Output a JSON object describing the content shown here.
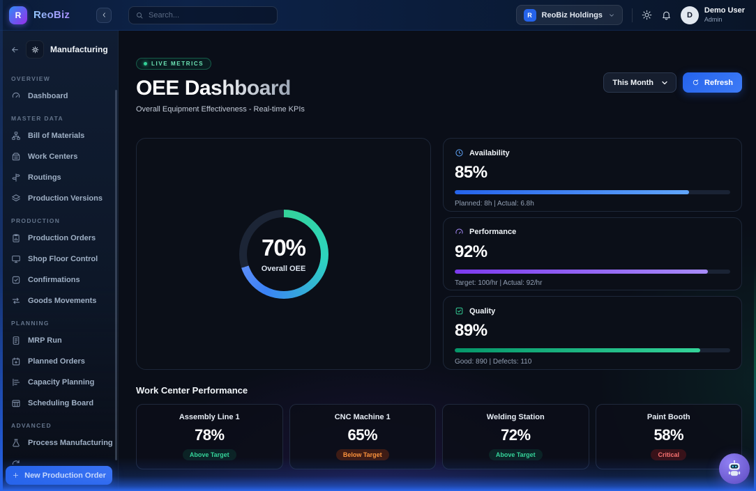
{
  "brand": {
    "initial": "R",
    "name": "ReoBiz"
  },
  "topbar": {
    "search_placeholder": "Search...",
    "tenant": {
      "initial": "R",
      "name": "ReoBiz Holdings"
    },
    "user": {
      "initial": "D",
      "name": "Demo User",
      "role": "Admin"
    }
  },
  "sidebar": {
    "module": "Manufacturing",
    "sections": [
      {
        "label": "OVERVIEW",
        "items": [
          {
            "label": "Dashboard"
          }
        ]
      },
      {
        "label": "MASTER DATA",
        "items": [
          {
            "label": "Bill of Materials"
          },
          {
            "label": "Work Centers"
          },
          {
            "label": "Routings"
          },
          {
            "label": "Production Versions"
          }
        ]
      },
      {
        "label": "PRODUCTION",
        "items": [
          {
            "label": "Production Orders"
          },
          {
            "label": "Shop Floor Control"
          },
          {
            "label": "Confirmations"
          },
          {
            "label": "Goods Movements"
          }
        ]
      },
      {
        "label": "PLANNING",
        "items": [
          {
            "label": "MRP Run"
          },
          {
            "label": "Planned Orders"
          },
          {
            "label": "Capacity Planning"
          },
          {
            "label": "Scheduling Board"
          }
        ]
      },
      {
        "label": "ADVANCED",
        "items": [
          {
            "label": "Process Manufacturing"
          }
        ]
      }
    ],
    "cta_label": "New Production Order"
  },
  "page": {
    "live_badge": "LIVE METRICS",
    "title": "OEE Dashboard",
    "subtitle": "Overall Equipment Effectiveness - Real-time KPIs",
    "period": "This Month",
    "refresh": "Refresh"
  },
  "oee": {
    "percent": 70,
    "display": "70%",
    "label": "Overall OEE",
    "ring_colors": [
      "#34d399",
      "#2dd4bf",
      "#3b82f6",
      "#5b8df8"
    ],
    "ring_track": "#1c2536"
  },
  "metrics": [
    {
      "name": "Availability",
      "value": 85,
      "display": "85%",
      "detail": "Planned: 8h | Actual: 6.8h",
      "color": "#2563eb",
      "color2": "#60a5fa"
    },
    {
      "name": "Performance",
      "value": 92,
      "display": "92%",
      "detail": "Target: 100/hr | Actual: 92/hr",
      "color": "#7c3aed",
      "color2": "#a78bfa"
    },
    {
      "name": "Quality",
      "value": 89,
      "display": "89%",
      "detail": "Good: 890 | Defects: 110",
      "color": "#059669",
      "color2": "#34d399"
    }
  ],
  "work_centers": {
    "heading": "Work Center Performance",
    "cards": [
      {
        "name": "Assembly Line 1",
        "display": "78%",
        "status": "Above Target",
        "status_type": "good"
      },
      {
        "name": "CNC Machine 1",
        "display": "65%",
        "status": "Below Target",
        "status_type": "warn"
      },
      {
        "name": "Welding Station",
        "display": "72%",
        "status": "Above Target",
        "status_type": "good"
      },
      {
        "name": "Paint Booth",
        "display": "58%",
        "status": "Critical",
        "status_type": "critical"
      }
    ]
  }
}
